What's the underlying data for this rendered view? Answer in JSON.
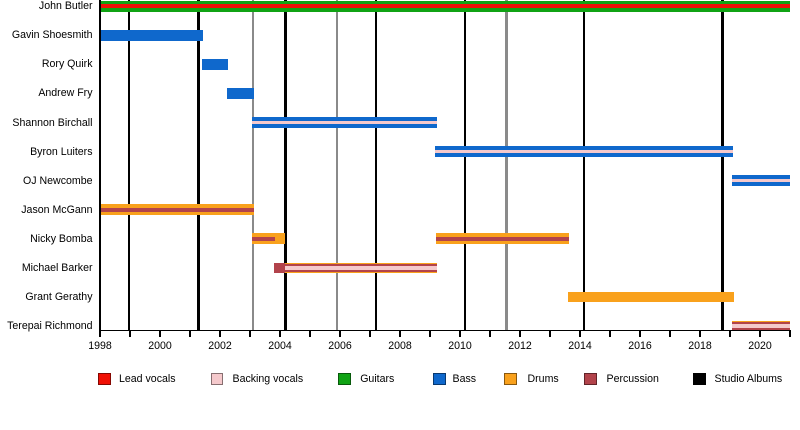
{
  "chart_data": {
    "type": "timeline",
    "description": "Band members timeline (gantt-style): member tenures by role over years, with vertical lines marking studio albums",
    "x_axis": {
      "start_year": 1998,
      "end_year": 2021,
      "tick_every_years": 1,
      "label_every_years": 2,
      "year_labels": [
        "1998",
        "2000",
        "2002",
        "2004",
        "2006",
        "2008",
        "2010",
        "2012",
        "2014",
        "2016",
        "2018",
        "2020"
      ]
    },
    "members": [
      {
        "name": "John Butler",
        "segments": [
          {
            "role": "guitars",
            "from": 1998.0,
            "to": 2021.0,
            "layer": "bar"
          },
          {
            "role": "lead_vocals",
            "from": 1998.0,
            "to": 2021.0,
            "layer": "stripe"
          }
        ]
      },
      {
        "name": "Gavin Shoesmith",
        "segments": [
          {
            "role": "bass",
            "from": 1998.0,
            "to": 2001.42,
            "layer": "bar"
          }
        ]
      },
      {
        "name": "Rory Quirk",
        "segments": [
          {
            "role": "bass",
            "from": 2001.4,
            "to": 2002.28,
            "layer": "bar"
          }
        ]
      },
      {
        "name": "Andrew Fry",
        "segments": [
          {
            "role": "bass",
            "from": 2002.24,
            "to": 2003.12,
            "layer": "bar"
          }
        ]
      },
      {
        "name": "Shannon Birchall",
        "segments": [
          {
            "role": "bass",
            "from": 2003.08,
            "to": 2009.22,
            "layer": "bar"
          },
          {
            "role": "backing_vocals",
            "from": 2003.08,
            "to": 2009.22,
            "layer": "stripe"
          }
        ]
      },
      {
        "name": "Byron Luiters",
        "segments": [
          {
            "role": "bass",
            "from": 2009.16,
            "to": 2019.1,
            "layer": "bar"
          },
          {
            "role": "backing_vocals",
            "from": 2009.16,
            "to": 2019.1,
            "layer": "stripe"
          }
        ]
      },
      {
        "name": "OJ Newcombe",
        "segments": [
          {
            "role": "bass",
            "from": 2019.06,
            "to": 2021.0,
            "layer": "bar"
          },
          {
            "role": "backing_vocals",
            "from": 2019.06,
            "to": 2021.0,
            "layer": "stripe"
          }
        ]
      },
      {
        "name": "Jason McGann",
        "segments": [
          {
            "role": "drums",
            "from": 1998.0,
            "to": 2003.14,
            "layer": "bar"
          },
          {
            "role": "percussion",
            "from": 1998.0,
            "to": 2003.14,
            "layer": "stripe"
          }
        ]
      },
      {
        "name": "Nicky Bomba",
        "segments": [
          {
            "role": "drums",
            "from": 2003.07,
            "to": 2004.18,
            "layer": "bar"
          },
          {
            "role": "percussion",
            "from": 2003.07,
            "to": 2003.83,
            "layer": "stripe"
          },
          {
            "role": "drums",
            "from": 2009.19,
            "to": 2013.65,
            "layer": "bar"
          },
          {
            "role": "percussion",
            "from": 2009.19,
            "to": 2013.65,
            "layer": "stripe"
          }
        ]
      },
      {
        "name": "Michael Barker",
        "segments": [
          {
            "role": "percussion",
            "from": 2003.8,
            "to": 2004.15,
            "layer": "bar"
          },
          {
            "role": "drums",
            "from": 2004.15,
            "to": 2009.22,
            "layer": "bar"
          },
          {
            "role": "percussion",
            "from": 2004.15,
            "to": 2009.22,
            "layer": "midstripe"
          },
          {
            "role": "backing_vocals",
            "from": 2004.15,
            "to": 2009.22,
            "layer": "stripe"
          }
        ]
      },
      {
        "name": "Grant Gerathy",
        "segments": [
          {
            "role": "drums",
            "from": 2013.6,
            "to": 2019.14,
            "layer": "bar"
          }
        ]
      },
      {
        "name": "Terepai Richmond",
        "segments": [
          {
            "role": "drums",
            "from": 2019.05,
            "to": 2021.0,
            "layer": "bar"
          },
          {
            "role": "percussion",
            "from": 2019.05,
            "to": 2021.0,
            "layer": "midstripe"
          },
          {
            "role": "backing_vocals",
            "from": 2019.05,
            "to": 2021.0,
            "layer": "stripe"
          }
        ]
      }
    ],
    "studio_album_years": [
      1998.97,
      2001.28,
      2004.18,
      2007.19,
      2010.17,
      2014.14,
      2018.75
    ],
    "secondary_line_years": [
      2003.11,
      2005.89,
      2011.55
    ],
    "legend": [
      {
        "label": "Lead vocals",
        "role": "lead_vocals"
      },
      {
        "label": "Backing vocals",
        "role": "backing_vocals"
      },
      {
        "label": "Guitars",
        "role": "guitars"
      },
      {
        "label": "Bass",
        "role": "bass"
      },
      {
        "label": "Drums",
        "role": "drums"
      },
      {
        "label": "Percussion",
        "role": "percussion"
      },
      {
        "label": "Studio Albums",
        "role": "studio_albums"
      }
    ],
    "colors": {
      "lead_vocals": "#f01005",
      "backing_vocals": "#f5c9cc",
      "guitars": "#10a314",
      "bass": "#0f68cc",
      "drums": "#f9a11c",
      "percussion": "#b2434b",
      "studio_albums": "#000000",
      "secondary_line": "#8a8a8a",
      "axis": "#000000",
      "text": "#000000",
      "background": "#ffffff"
    }
  }
}
